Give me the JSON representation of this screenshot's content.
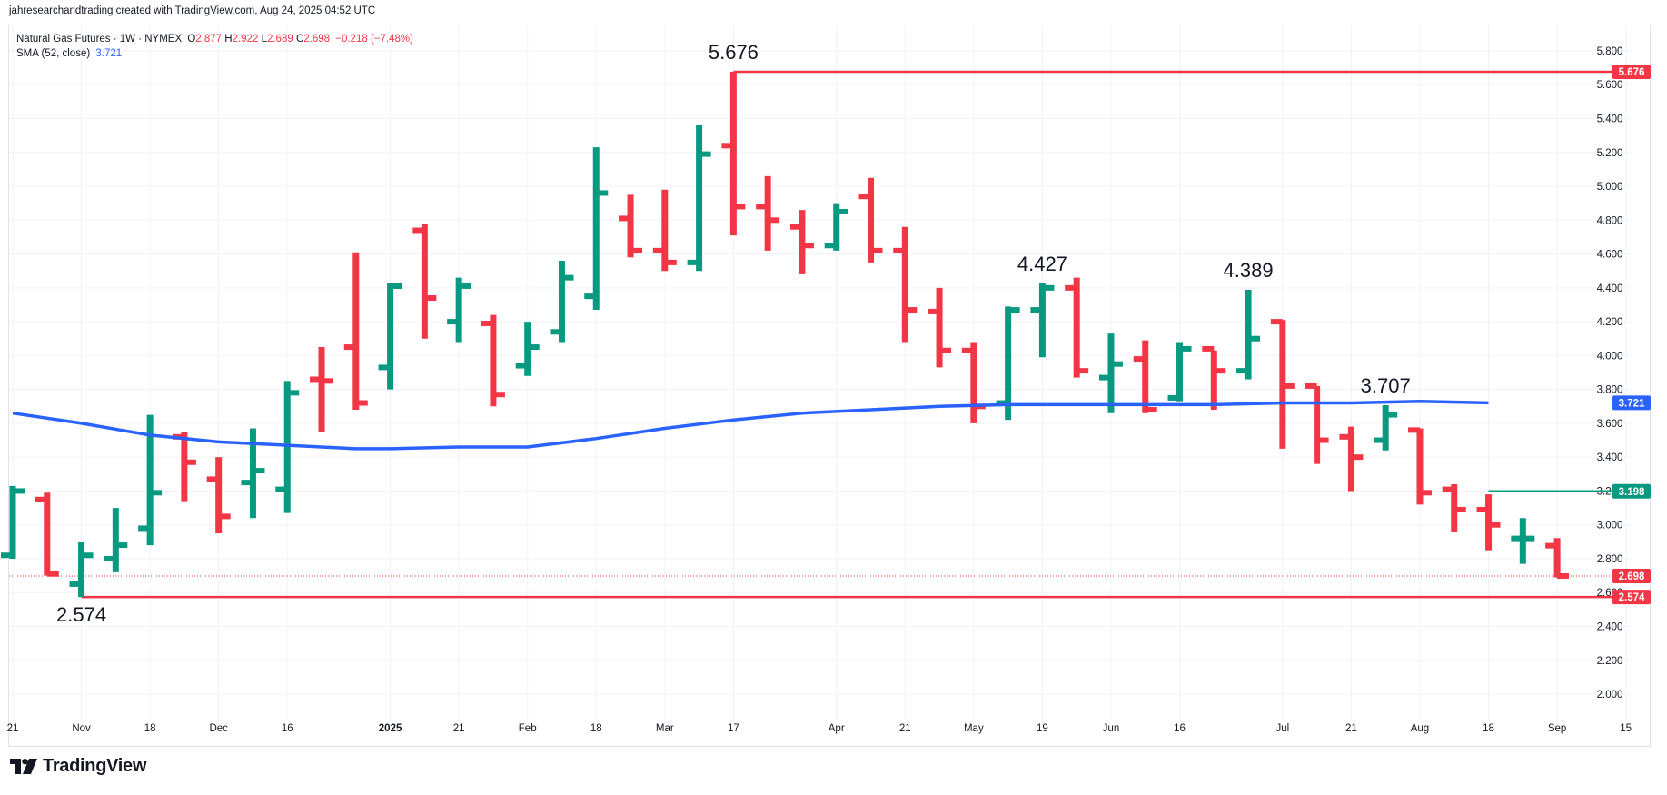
{
  "header": {
    "attribution": "jahresearchandtrading created with TradingView.com, Aug 24, 2025 04:52 UTC"
  },
  "legend": {
    "symbol": "Natural Gas Futures · 1W · NYMEX",
    "o_label": "O",
    "o_value": "2.877",
    "h_label": "H",
    "h_value": "2.922",
    "l_label": "L",
    "l_value": "2.689",
    "c_label": "C",
    "c_value": "2.698",
    "change": "−0.218 (−7.48%)",
    "sma_label": "SMA (52, close)",
    "sma_value": "3.721"
  },
  "brand": {
    "name": "TradingView"
  },
  "colors": {
    "up": "#089981",
    "down": "#f23645",
    "sma": "#2962ff",
    "grid": "#f0f3fa",
    "text": "#131722"
  },
  "chart_data": {
    "type": "ohlc_bar",
    "symbol": "Natural Gas Futures",
    "timeframe": "1W",
    "ylim": [
      1.85,
      5.95
    ],
    "yticks": [
      2.0,
      2.2,
      2.4,
      2.6,
      2.8,
      3.0,
      3.2,
      3.4,
      3.6,
      3.8,
      4.0,
      4.2,
      4.4,
      4.6,
      4.8,
      5.0,
      5.2,
      5.4,
      5.6,
      5.8
    ],
    "ytick_labels": [
      "2.000",
      "2.200",
      "2.400",
      "2.600",
      "2.800",
      "3.000",
      "3.200",
      "3.400",
      "3.600",
      "3.800",
      "4.000",
      "4.200",
      "4.400",
      "4.600",
      "4.800",
      "5.000",
      "5.200",
      "5.400",
      "5.600",
      "5.800"
    ],
    "x_labels": [
      {
        "label": "21",
        "week": 0
      },
      {
        "label": "Nov",
        "week": 2
      },
      {
        "label": "18",
        "week": 4
      },
      {
        "label": "Dec",
        "week": 6
      },
      {
        "label": "16",
        "week": 8
      },
      {
        "label": "2025",
        "week": 11,
        "bold": true
      },
      {
        "label": "21",
        "week": 13
      },
      {
        "label": "Feb",
        "week": 15
      },
      {
        "label": "18",
        "week": 17
      },
      {
        "label": "Mar",
        "week": 19
      },
      {
        "label": "17",
        "week": 21
      },
      {
        "label": "Apr",
        "week": 24
      },
      {
        "label": "21",
        "week": 26
      },
      {
        "label": "May",
        "week": 28
      },
      {
        "label": "19",
        "week": 30
      },
      {
        "label": "Jun",
        "week": 32
      },
      {
        "label": "16",
        "week": 34
      },
      {
        "label": "Jul",
        "week": 37
      },
      {
        "label": "21",
        "week": 39
      },
      {
        "label": "Aug",
        "week": 41
      },
      {
        "label": "18",
        "week": 43
      },
      {
        "label": "Sep",
        "week": 45
      },
      {
        "label": "15",
        "week": 47
      }
    ],
    "bars": [
      {
        "o": 2.82,
        "h": 3.23,
        "l": 2.8,
        "c": 3.2
      },
      {
        "o": 3.15,
        "h": 3.19,
        "l": 2.7,
        "c": 2.71
      },
      {
        "o": 2.65,
        "h": 2.9,
        "l": 2.574,
        "c": 2.82
      },
      {
        "o": 2.8,
        "h": 3.1,
        "l": 2.72,
        "c": 2.88
      },
      {
        "o": 2.98,
        "h": 3.65,
        "l": 2.88,
        "c": 3.19
      },
      {
        "o": 3.52,
        "h": 3.55,
        "l": 3.14,
        "c": 3.37
      },
      {
        "o": 3.27,
        "h": 3.4,
        "l": 2.95,
        "c": 3.05
      },
      {
        "o": 3.25,
        "h": 3.57,
        "l": 3.04,
        "c": 3.32
      },
      {
        "o": 3.21,
        "h": 3.85,
        "l": 3.07,
        "c": 3.78
      },
      {
        "o": 3.86,
        "h": 4.05,
        "l": 3.55,
        "c": 3.85
      },
      {
        "o": 4.05,
        "h": 4.61,
        "l": 3.68,
        "c": 3.72
      },
      {
        "o": 3.93,
        "h": 4.43,
        "l": 3.8,
        "c": 4.41
      },
      {
        "o": 4.74,
        "h": 4.78,
        "l": 4.1,
        "c": 4.34
      },
      {
        "o": 4.2,
        "h": 4.46,
        "l": 4.08,
        "c": 4.41
      },
      {
        "o": 4.19,
        "h": 4.24,
        "l": 3.7,
        "c": 3.77
      },
      {
        "o": 3.94,
        "h": 4.2,
        "l": 3.88,
        "c": 4.05
      },
      {
        "o": 4.14,
        "h": 4.56,
        "l": 4.08,
        "c": 4.46
      },
      {
        "o": 4.35,
        "h": 5.23,
        "l": 4.27,
        "c": 4.96
      },
      {
        "o": 4.81,
        "h": 4.95,
        "l": 4.58,
        "c": 4.62
      },
      {
        "o": 4.62,
        "h": 4.98,
        "l": 4.5,
        "c": 4.55
      },
      {
        "o": 4.55,
        "h": 5.36,
        "l": 4.5,
        "c": 5.19
      },
      {
        "o": 5.24,
        "h": 5.676,
        "l": 4.71,
        "c": 4.88
      },
      {
        "o": 4.88,
        "h": 5.06,
        "l": 4.62,
        "c": 4.8
      },
      {
        "o": 4.76,
        "h": 4.86,
        "l": 4.48,
        "c": 4.65
      },
      {
        "o": 4.65,
        "h": 4.9,
        "l": 4.62,
        "c": 4.85
      },
      {
        "o": 4.94,
        "h": 5.05,
        "l": 4.55,
        "c": 4.62
      },
      {
        "o": 4.62,
        "h": 4.76,
        "l": 4.08,
        "c": 4.27
      },
      {
        "o": 4.26,
        "h": 4.4,
        "l": 3.93,
        "c": 4.03
      },
      {
        "o": 4.03,
        "h": 4.08,
        "l": 3.6,
        "c": 3.7
      },
      {
        "o": 3.72,
        "h": 4.29,
        "l": 3.62,
        "c": 4.27
      },
      {
        "o": 4.27,
        "h": 4.427,
        "l": 3.99,
        "c": 4.4
      },
      {
        "o": 4.4,
        "h": 4.46,
        "l": 3.87,
        "c": 3.91
      },
      {
        "o": 3.87,
        "h": 4.13,
        "l": 3.66,
        "c": 3.95
      },
      {
        "o": 3.98,
        "h": 4.09,
        "l": 3.66,
        "c": 3.68
      },
      {
        "o": 3.75,
        "h": 4.08,
        "l": 3.73,
        "c": 4.04
      },
      {
        "o": 4.04,
        "h": 4.03,
        "l": 3.68,
        "c": 3.91
      },
      {
        "o": 3.91,
        "h": 4.389,
        "l": 3.86,
        "c": 4.1
      },
      {
        "o": 4.2,
        "h": 4.21,
        "l": 3.45,
        "c": 3.82
      },
      {
        "o": 3.82,
        "h": 3.82,
        "l": 3.36,
        "c": 3.5
      },
      {
        "o": 3.52,
        "h": 3.58,
        "l": 3.2,
        "c": 3.4
      },
      {
        "o": 3.5,
        "h": 3.707,
        "l": 3.44,
        "c": 3.65
      },
      {
        "o": 3.56,
        "h": 3.57,
        "l": 3.12,
        "c": 3.19
      },
      {
        "o": 3.21,
        "h": 3.24,
        "l": 2.96,
        "c": 3.09
      },
      {
        "o": 3.09,
        "h": 3.18,
        "l": 2.85,
        "c": 3.0
      },
      {
        "o": 2.92,
        "h": 3.04,
        "l": 2.77,
        "c": 2.92
      },
      {
        "o": 2.877,
        "h": 2.922,
        "l": 2.689,
        "c": 2.698
      }
    ],
    "sma": {
      "name": "SMA (52, close)",
      "points": [
        {
          "week": 0,
          "v": 3.66
        },
        {
          "week": 2,
          "v": 3.6
        },
        {
          "week": 4,
          "v": 3.53
        },
        {
          "week": 6,
          "v": 3.49
        },
        {
          "week": 8,
          "v": 3.47
        },
        {
          "week": 10,
          "v": 3.45
        },
        {
          "week": 11,
          "v": 3.45
        },
        {
          "week": 13,
          "v": 3.46
        },
        {
          "week": 15,
          "v": 3.46
        },
        {
          "week": 17,
          "v": 3.51
        },
        {
          "week": 19,
          "v": 3.57
        },
        {
          "week": 21,
          "v": 3.62
        },
        {
          "week": 23,
          "v": 3.66
        },
        {
          "week": 25,
          "v": 3.68
        },
        {
          "week": 27,
          "v": 3.7
        },
        {
          "week": 29,
          "v": 3.71
        },
        {
          "week": 31,
          "v": 3.71
        },
        {
          "week": 33,
          "v": 3.71
        },
        {
          "week": 35,
          "v": 3.71
        },
        {
          "week": 37,
          "v": 3.72
        },
        {
          "week": 39,
          "v": 3.72
        },
        {
          "week": 41,
          "v": 3.73
        },
        {
          "week": 43,
          "v": 3.721
        }
      ]
    },
    "hlines": [
      {
        "value": 5.676,
        "from_week": 21,
        "color": "#f23645",
        "label": "5.676"
      },
      {
        "value": 2.574,
        "from_week": 2,
        "color": "#f23645",
        "label": "2.574"
      },
      {
        "value": 3.198,
        "from_week": 43,
        "color": "#089981",
        "label": "3.198"
      }
    ],
    "last_price": {
      "value": 2.698,
      "label": "2.698",
      "color": "#f23645"
    },
    "sma_badge": {
      "value": 3.721,
      "label": "3.721",
      "color": "#2962ff"
    },
    "annotations": [
      {
        "text": "5.676",
        "week": 21,
        "value": 5.676,
        "pos": "above"
      },
      {
        "text": "4.427",
        "week": 30,
        "value": 4.427,
        "pos": "above"
      },
      {
        "text": "4.389",
        "week": 36,
        "value": 4.389,
        "pos": "above"
      },
      {
        "text": "3.707",
        "week": 40,
        "value": 3.707,
        "pos": "above"
      },
      {
        "text": "2.574",
        "week": 2,
        "value": 2.574,
        "pos": "below"
      }
    ]
  }
}
